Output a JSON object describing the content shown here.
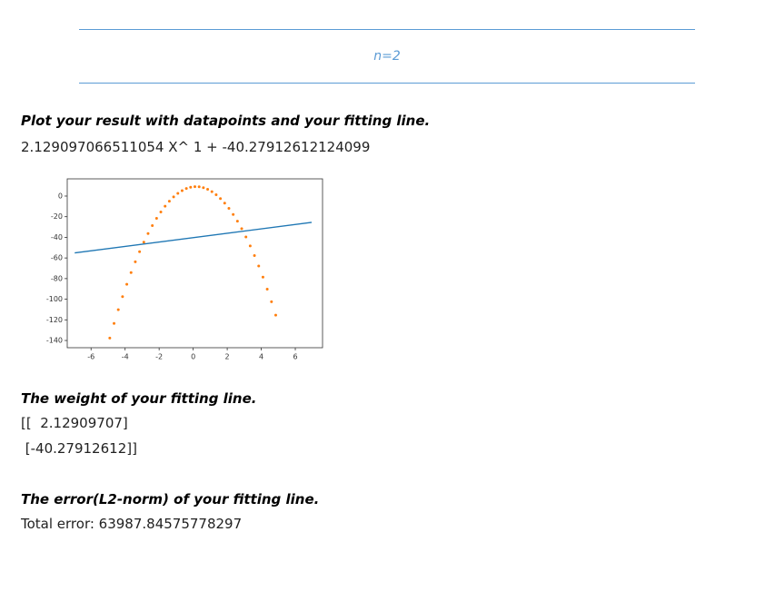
{
  "header": {
    "label": "n=2"
  },
  "sections": [
    {
      "heading": "Plot your result with datapoints and your fitting line.",
      "lines": [
        "2.129097066511054 X^ 1 + -40.27912612124099"
      ]
    },
    {
      "heading": "The weight of your fitting line.",
      "lines": [
        "[[  2.12909707]",
        " [-40.27912612]]"
      ]
    },
    {
      "heading": "The error(L2-norm) of your fitting line.",
      "lines": [
        "Total error: 63987.84575778297"
      ]
    }
  ],
  "chart_data": {
    "type": "scatter",
    "xlim": [
      -7.4,
      7.6
    ],
    "ylim": [
      -147,
      16.7
    ],
    "xticks": [
      -6,
      -4,
      -2,
      0,
      2,
      4,
      6
    ],
    "yticks": [
      -140,
      -120,
      -100,
      -80,
      -60,
      -40,
      -20,
      0
    ],
    "series": [
      {
        "style": "dots",
        "color": "#ff7f0e",
        "x": [
          -4.9,
          -4.65,
          -4.4,
          -4.15,
          -3.9,
          -3.65,
          -3.4,
          -3.15,
          -2.9,
          -2.65,
          -2.4,
          -2.15,
          -1.9,
          -1.65,
          -1.4,
          -1.15,
          -0.9,
          -0.65,
          -0.4,
          -0.15,
          0.1,
          0.35,
          0.6,
          0.85,
          1.1,
          1.35,
          1.6,
          1.85,
          2.1,
          2.35,
          2.6,
          2.85,
          3.1,
          3.35,
          3.6,
          3.85,
          4.1,
          4.35,
          4.6,
          4.85
        ],
        "values": [
          -137.7,
          -123.5,
          -110.2,
          -97.5,
          -85.5,
          -74.2,
          -63.7,
          -53.9,
          -44.7,
          -36.3,
          -28.6,
          -21.6,
          -15.4,
          -9.8,
          -5.0,
          -0.8,
          2.6,
          5.3,
          7.3,
          8.6,
          9.1,
          9.0,
          8.1,
          6.6,
          4.3,
          1.3,
          -2.4,
          -6.8,
          -11.9,
          -17.8,
          -24.3,
          -31.6,
          -39.6,
          -48.3,
          -57.7,
          -67.8,
          -78.6,
          -90.2,
          -102.4,
          -115.4
        ]
      },
      {
        "style": "line",
        "color": "#1f77b4",
        "x": [
          -6.96,
          6.96
        ],
        "values": [
          -55.1,
          -25.5
        ]
      }
    ]
  }
}
